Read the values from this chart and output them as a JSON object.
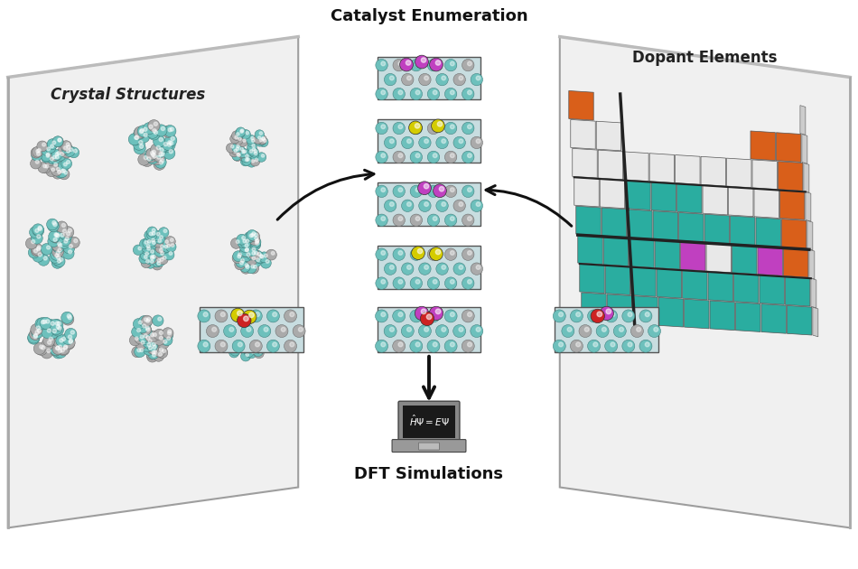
{
  "bg_color": "#ffffff",
  "left_panel_label": "Crystal Structures",
  "right_panel_label": "Dopant Elements",
  "center_label": "Catalyst Enumeration",
  "bottom_label": "DFT Simulations",
  "teal_color": "#2aada0",
  "orange_color": "#d95f1a",
  "magenta_color": "#c040c0",
  "nanoparticle_teal": "#6dc0bc",
  "nanoparticle_gray": "#aaaaaa",
  "yellow_color": "#d4cc00",
  "red_color": "#cc2222",
  "panel_fill": "#f2f2f2",
  "panel_edge": "#888888",
  "slab_bg": "#c8dde0",
  "cell_white": "#e8e8e8",
  "cell_gray": "#bbbbbb"
}
